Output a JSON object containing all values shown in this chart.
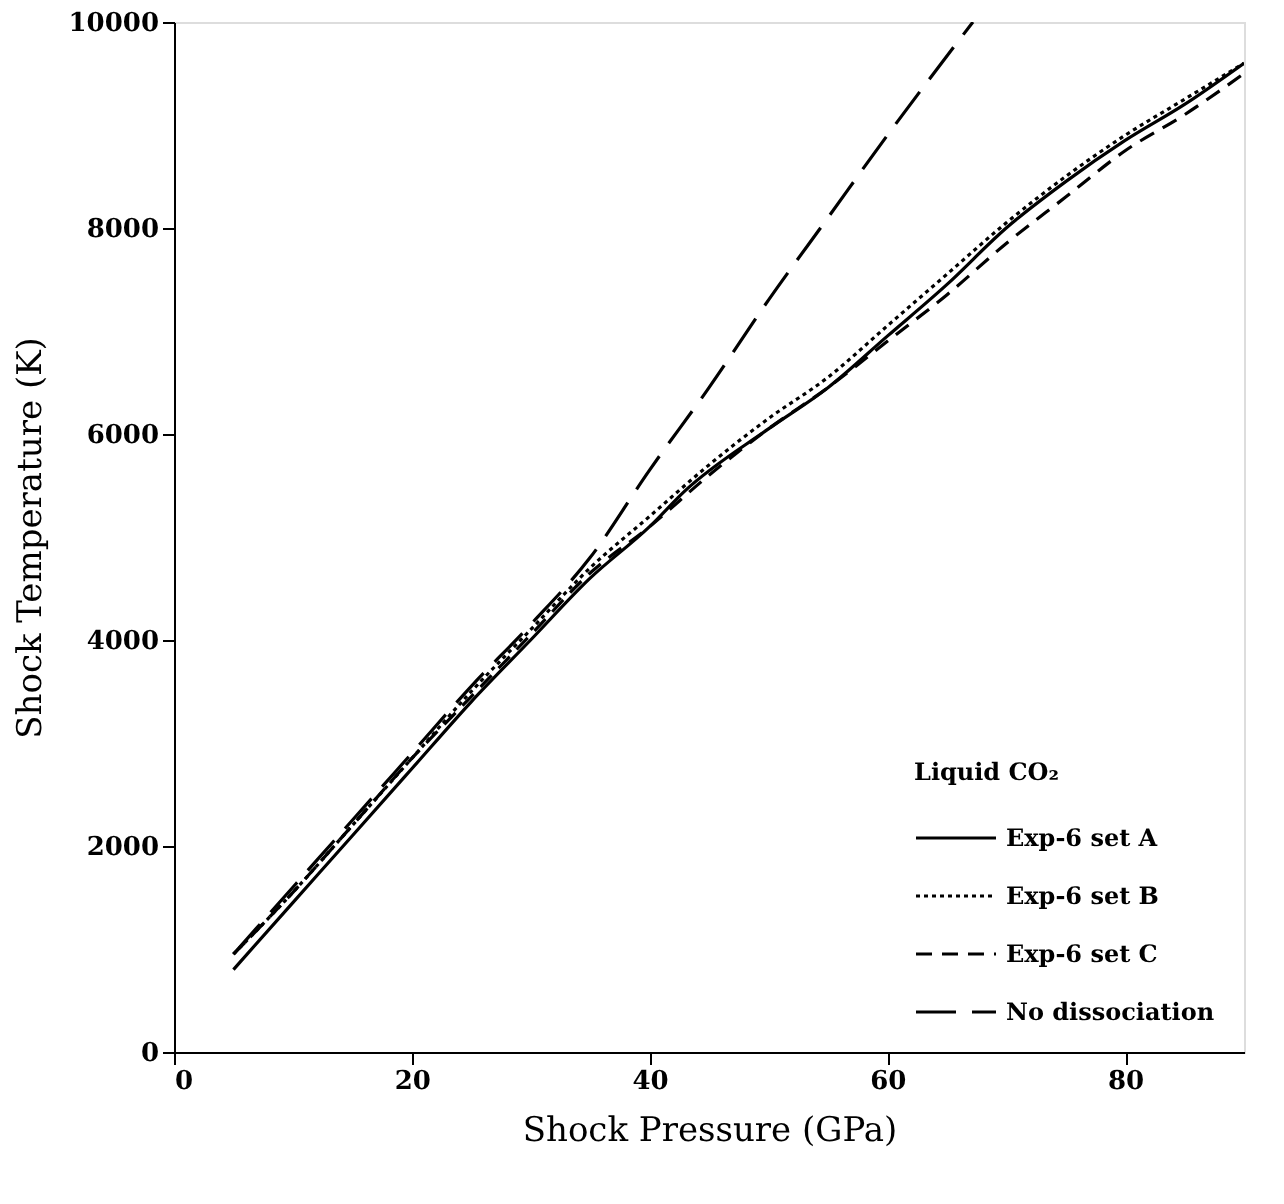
{
  "chart_data": {
    "type": "line",
    "xlabel": "Shock Pressure (GPa)",
    "ylabel": "Shock Temperature (K)",
    "legend_title": "Liquid CO₂",
    "legend": "bottom right",
    "grid": false,
    "xlim": [
      0,
      90
    ],
    "xticks": [
      0,
      20,
      40,
      60,
      80
    ],
    "ylim": [
      0,
      10000
    ],
    "yticks": [
      0,
      2000,
      4000,
      6000,
      8000,
      10000
    ],
    "series": [
      {
        "name": "Exp-6 set A",
        "color": "#000000",
        "line_style": "solid",
        "x": [
          5,
          10,
          15,
          20,
          25,
          30,
          35,
          40,
          43,
          50,
          55,
          60,
          65,
          70,
          75,
          80,
          85,
          90
        ],
        "values": [
          800,
          1450,
          2100,
          2750,
          3400,
          4000,
          4600,
          5100,
          5450,
          6050,
          6450,
          6950,
          7450,
          8000,
          8450,
          8850,
          9200,
          9600
        ]
      },
      {
        "name": "Exp-6 set B",
        "color": "#000000",
        "line_style": "dotted",
        "x": [
          5,
          10,
          15,
          20,
          25,
          30,
          35,
          40,
          45,
          50,
          55,
          60,
          65,
          70,
          75,
          80,
          85,
          90
        ],
        "values": [
          950,
          1550,
          2200,
          2850,
          3500,
          4100,
          4700,
          5200,
          5700,
          6150,
          6550,
          7050,
          7550,
          8050,
          8500,
          8900,
          9250,
          9600
        ]
      },
      {
        "name": "Exp-6 set C",
        "color": "#000000",
        "line_style": "dashed",
        "x": [
          5,
          10,
          15,
          20,
          25,
          30,
          35,
          40,
          45,
          50,
          55,
          60,
          65,
          70,
          75,
          80,
          85,
          90
        ],
        "values": [
          950,
          1550,
          2200,
          2850,
          3450,
          4050,
          4650,
          5100,
          5600,
          6050,
          6450,
          6900,
          7350,
          7850,
          8300,
          8750,
          9100,
          9500
        ]
      },
      {
        "name": "No dissociation",
        "color": "#000000",
        "line_style": "dashed",
        "x": [
          5,
          10,
          15,
          20,
          25,
          30,
          35,
          40,
          45,
          50,
          55,
          60,
          67.2
        ],
        "values": [
          950,
          1600,
          2250,
          2900,
          3550,
          4150,
          4800,
          5650,
          6450,
          7300,
          8100,
          8900,
          10000
        ]
      }
    ]
  }
}
